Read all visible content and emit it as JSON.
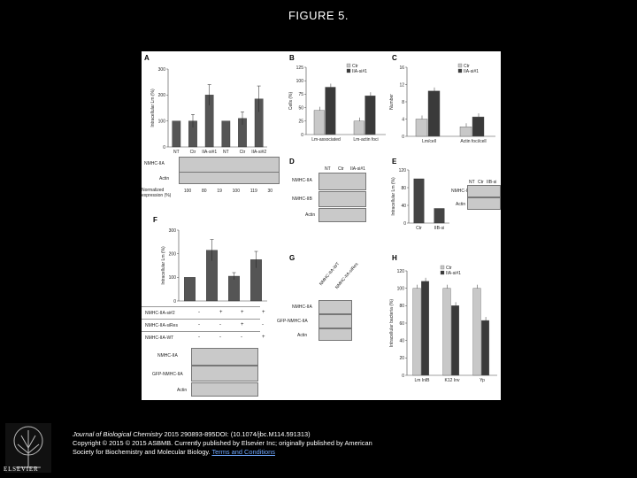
{
  "slide_title": "FIGURE 5.",
  "panels": {
    "A": {
      "letter": "A",
      "ylabel": "Intracellular Lm (%)",
      "yticks": [
        "0",
        "100",
        "200",
        "300"
      ],
      "groups": [
        "NT",
        "Ctr",
        "IIA-si#1",
        "NT",
        "Ctr",
        "IIA-si#2"
      ],
      "blot_labels": [
        "NMHC-IIA",
        "Actin"
      ],
      "norm_label_1": "Normalized",
      "norm_label_2": "expression (%)",
      "norm_values": [
        "100",
        "80",
        "19",
        "100",
        "119",
        "30"
      ]
    },
    "B": {
      "letter": "B",
      "ylabel": "Cells (%)",
      "yticks": [
        "0",
        "25",
        "50",
        "75",
        "100",
        "125"
      ],
      "legend": [
        "Ctr",
        "IIA-si#1"
      ],
      "categories": [
        "Lm-associated",
        "Lm-actin foci"
      ]
    },
    "C": {
      "letter": "C",
      "ylabel": "Number",
      "yticks": [
        "0",
        "4",
        "8",
        "12",
        "16"
      ],
      "legend": [
        "Ctr",
        "IIA-si#1"
      ],
      "categories": [
        "Lm/cell",
        "Actin foci/cell"
      ]
    },
    "D": {
      "letter": "D",
      "lanes": [
        "NT",
        "Ctr",
        "IIA-si#1"
      ],
      "blot_labels": [
        "NMHC-IIA",
        "NMHC-IIB",
        "Actin"
      ]
    },
    "E": {
      "letter": "E",
      "ylabel": "Intracellular Lm (%)",
      "yticks": [
        "0",
        "40",
        "80",
        "120"
      ],
      "categories": [
        "Ctr",
        "IIB-si"
      ],
      "lanes": [
        "NT",
        "Ctr",
        "IIB-si"
      ],
      "blot_labels": [
        "NMHC-IIB",
        "Actin"
      ]
    },
    "F": {
      "letter": "F",
      "ylabel": "Intracellular Lm (%)",
      "yticks": [
        "0",
        "100",
        "200",
        "300"
      ],
      "row_labels": [
        "NMHC-IIA-si#2",
        "NMHC-IIA-siRes",
        "NMHC-IIA-WT"
      ],
      "rows": [
        [
          "-",
          "+",
          "+",
          "+"
        ],
        [
          "-",
          "-",
          "+",
          "-"
        ],
        [
          "-",
          "-",
          "-",
          "+"
        ]
      ],
      "blot_labels": [
        "NMHC-IIA",
        "GFP-NMHC-IIA",
        "Actin"
      ]
    },
    "G": {
      "letter": "G",
      "lanes": [
        "NMHC-IIA-WT",
        "NMHC-IIA-siRes"
      ],
      "blot_labels": [
        "NMHC-IIA",
        "GFP-NMHC-IIA",
        "Actin"
      ]
    },
    "H": {
      "letter": "H",
      "ylabel": "Intracellular bacteria (%)",
      "yticks": [
        "0",
        "20",
        "40",
        "60",
        "80",
        "100",
        "120"
      ],
      "legend": [
        "Ctr",
        "IIA-si#1"
      ],
      "categories": [
        "Lm InlB",
        "K12 Inv",
        "Yp"
      ]
    }
  },
  "chart_data": [
    {
      "panel": "A",
      "type": "bar",
      "categories": [
        "NT",
        "Ctr",
        "IIA-si#1",
        "NT",
        "Ctr",
        "IIA-si#2"
      ],
      "values": [
        100,
        100,
        200,
        100,
        110,
        185
      ],
      "errors": [
        0,
        25,
        40,
        0,
        25,
        50
      ],
      "ylim": [
        0,
        300
      ]
    },
    {
      "panel": "B",
      "type": "bar",
      "categories": [
        "Lm-associated",
        "Lm-actin foci"
      ],
      "series": [
        {
          "name": "Ctr",
          "values": [
            45,
            25
          ]
        },
        {
          "name": "IIA-si#1",
          "values": [
            88,
            72
          ]
        }
      ],
      "ylim": [
        0,
        125
      ]
    },
    {
      "panel": "C",
      "type": "bar",
      "categories": [
        "Lm/cell",
        "Actin foci/cell"
      ],
      "series": [
        {
          "name": "Ctr",
          "values": [
            4,
            2.2
          ]
        },
        {
          "name": "IIA-si#1",
          "values": [
            10.5,
            4.5
          ]
        }
      ],
      "ylim": [
        0,
        16
      ]
    },
    {
      "panel": "E",
      "type": "bar",
      "categories": [
        "Ctr",
        "IIB-si"
      ],
      "values": [
        100,
        33
      ],
      "ylim": [
        0,
        120
      ]
    },
    {
      "panel": "F",
      "type": "bar",
      "categories": [
        "1",
        "2",
        "3",
        "4"
      ],
      "values": [
        100,
        215,
        105,
        175
      ],
      "errors": [
        0,
        45,
        15,
        35
      ],
      "ylim": [
        0,
        300
      ]
    },
    {
      "panel": "H",
      "type": "bar",
      "categories": [
        "Lm InlB",
        "K12 Inv",
        "Yp"
      ],
      "series": [
        {
          "name": "Ctr",
          "values": [
            100,
            100,
            100
          ]
        },
        {
          "name": "IIA-si#1",
          "values": [
            108,
            80,
            63
          ]
        }
      ],
      "ylim": [
        0,
        120
      ]
    }
  ],
  "footer": {
    "journal": "Journal of Biological Chemistry",
    "citation": " 2015 290893-895DOI: (10.1074/jbc.M114.591313)",
    "copyright": "Copyright © 2015 © 2015 ASBMB. Currently published by Elsevier Inc; originally published by American",
    "society": "Society for Biochemistry and Molecular Biology. ",
    "link": "Terms and Conditions"
  },
  "logo": {
    "text": "ELSEVIER"
  }
}
